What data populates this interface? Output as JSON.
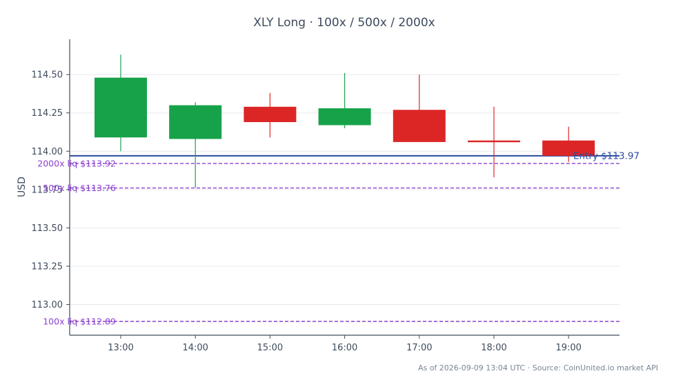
{
  "chart_data": {
    "type": "candlestick",
    "title": "XLY Long · 100x / 500x / 2000x",
    "ylabel": "USD",
    "xlabel": "",
    "ylim": [
      112.8,
      114.73
    ],
    "yticks": [
      113.0,
      113.25,
      113.5,
      113.75,
      114.0,
      114.25,
      114.5
    ],
    "ytick_labels": [
      "113.00",
      "113.25",
      "113.50",
      "113.75",
      "114.00",
      "114.25",
      "114.50"
    ],
    "categories": [
      "13:00",
      "14:00",
      "15:00",
      "16:00",
      "17:00",
      "18:00",
      "19:00"
    ],
    "candles": [
      {
        "time": "13:00",
        "open": 114.09,
        "high": 114.63,
        "low": 114.0,
        "close": 114.48
      },
      {
        "time": "14:00",
        "open": 114.08,
        "high": 114.32,
        "low": 113.76,
        "close": 114.3
      },
      {
        "time": "15:00",
        "open": 114.29,
        "high": 114.38,
        "low": 114.09,
        "close": 114.19
      },
      {
        "time": "16:00",
        "open": 114.17,
        "high": 114.51,
        "low": 114.15,
        "close": 114.28
      },
      {
        "time": "17:00",
        "open": 114.27,
        "high": 114.5,
        "low": 114.06,
        "close": 114.06
      },
      {
        "time": "18:00",
        "open": 114.07,
        "high": 114.29,
        "low": 113.83,
        "close": 114.06
      },
      {
        "time": "19:00",
        "open": 114.07,
        "high": 114.16,
        "low": 113.93,
        "close": 113.97
      }
    ],
    "entry": {
      "value": 113.97,
      "label": "Entry $113.97"
    },
    "liquidations": [
      {
        "value": 113.92,
        "label": "2000x liq $113.92"
      },
      {
        "value": 113.76,
        "label": "500x liq $113.76"
      },
      {
        "value": 112.89,
        "label": "100x liq $112.89"
      }
    ],
    "colors": {
      "up": "#17a24a",
      "down": "#dc2626",
      "entry": "#2a4aa0",
      "liq": "#8a3fd1",
      "grid": "#e6e8ec",
      "axis": "#3d4a5c"
    },
    "grid": true,
    "footer": "As of 2026-09-09 13:04 UTC · Source: CoinUnited.io market API"
  }
}
